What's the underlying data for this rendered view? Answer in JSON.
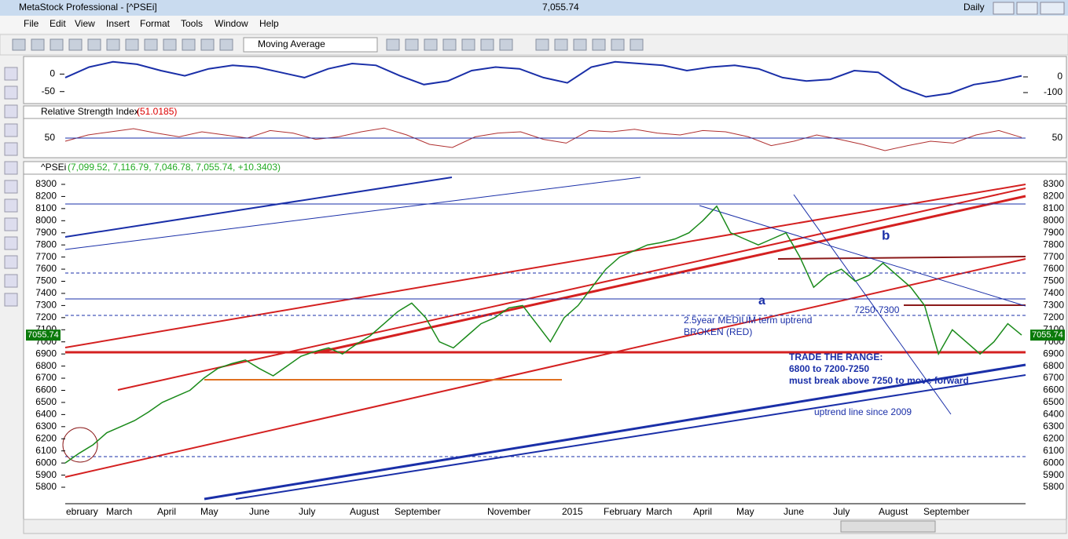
{
  "window": {
    "title": "MetaStock Professional - [^PSEi]",
    "price": "7,055.74",
    "period": "Daily"
  },
  "menu": [
    "File",
    "Edit",
    "View",
    "Insert",
    "Format",
    "Tools",
    "Window",
    "Help"
  ],
  "toolbar": {
    "indicator": "Moving Average"
  },
  "macd_pane": {
    "yticks": [
      0,
      -50
    ],
    "y2ticks": [
      0,
      -100
    ],
    "ylim": [
      -82,
      48
    ],
    "values": [
      -10,
      20,
      35,
      28,
      10,
      -5,
      15,
      25,
      20,
      5,
      -10,
      15,
      30,
      25,
      -5,
      -30,
      -20,
      10,
      20,
      15,
      -10,
      -25,
      20,
      35,
      30,
      25,
      10,
      20,
      25,
      15,
      -10,
      -20,
      -15,
      10,
      5,
      -40,
      -65,
      -55,
      -30,
      -20,
      -5
    ]
  },
  "rsi_pane": {
    "title": "Relative Strength Index",
    "reading": "(51.0185)",
    "yticks": [
      50
    ],
    "ylim": [
      20,
      80
    ],
    "values": [
      45,
      55,
      60,
      65,
      58,
      52,
      60,
      55,
      50,
      62,
      58,
      48,
      52,
      60,
      66,
      55,
      40,
      35,
      52,
      58,
      60,
      48,
      42,
      62,
      60,
      64,
      58,
      55,
      62,
      60,
      52,
      38,
      45,
      55,
      48,
      40,
      30,
      38,
      45,
      42,
      55,
      62,
      51.0185
    ]
  },
  "price_pane": {
    "title": "^PSEi",
    "ohlc": "(7,099.52, 7,116.79, 7,046.78, 7,055.74, +10.3403)",
    "last_label": "7055.74",
    "ylim": [
      5703,
      8384
    ],
    "yticks": [
      5800,
      5900,
      6000,
      6100,
      6200,
      6300,
      6400,
      6500,
      6600,
      6700,
      6800,
      6900,
      7000,
      7100,
      7200,
      7300,
      7400,
      7500,
      7600,
      7700,
      7800,
      7900,
      8000,
      8100,
      8200,
      8300
    ],
    "x_labels": [
      "ebruary",
      "March",
      "April",
      "May",
      "June",
      "July",
      "August",
      "September",
      "November",
      "2015",
      "February",
      "March",
      "April",
      "May",
      "June",
      "July",
      "August",
      "September"
    ],
    "closes": [
      6000,
      6080,
      6150,
      6250,
      6300,
      6350,
      6420,
      6500,
      6550,
      6600,
      6700,
      6780,
      6820,
      6850,
      6780,
      6720,
      6800,
      6880,
      6920,
      6950,
      6900,
      6980,
      7050,
      7150,
      7250,
      7320,
      7200,
      7000,
      6950,
      7050,
      7150,
      7200,
      7280,
      7300,
      7150,
      7000,
      7200,
      7300,
      7450,
      7600,
      7700,
      7750,
      7800,
      7820,
      7850,
      7900,
      8000,
      8120,
      7900,
      7850,
      7800,
      7850,
      7900,
      7700,
      7450,
      7550,
      7600,
      7500,
      7550,
      7650,
      7550,
      7450,
      7300,
      6900,
      7100,
      7000,
      6900,
      7000,
      7150,
      7055.74
    ],
    "annotations": [
      "a",
      "b",
      "7250-7300",
      "2.5year MEDIUM term uptrend",
      "BROKEN (RED)",
      "TRADE THE RANGE:",
      "6800 to 7200-7250",
      "must break above 7250 to move forward",
      "uptrend line since 2009"
    ]
  }
}
